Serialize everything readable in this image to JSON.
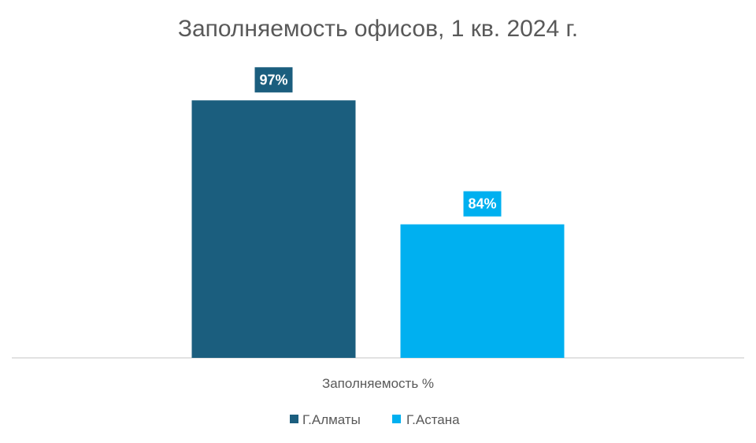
{
  "chart_data": {
    "type": "bar",
    "title": "Заполняемость офисов, 1 кв. 2024 г.",
    "categories": [
      "Заполняемость %"
    ],
    "series": [
      {
        "name": "Г.Алматы",
        "values": [
          97
        ],
        "label": "97%",
        "color": "#1b5e7e"
      },
      {
        "name": "Г.Астана",
        "values": [
          84
        ],
        "label": "84%",
        "color": "#00b0f0"
      }
    ],
    "ylim": [
      70,
      100
    ],
    "grid": false,
    "legend": "bottom"
  }
}
